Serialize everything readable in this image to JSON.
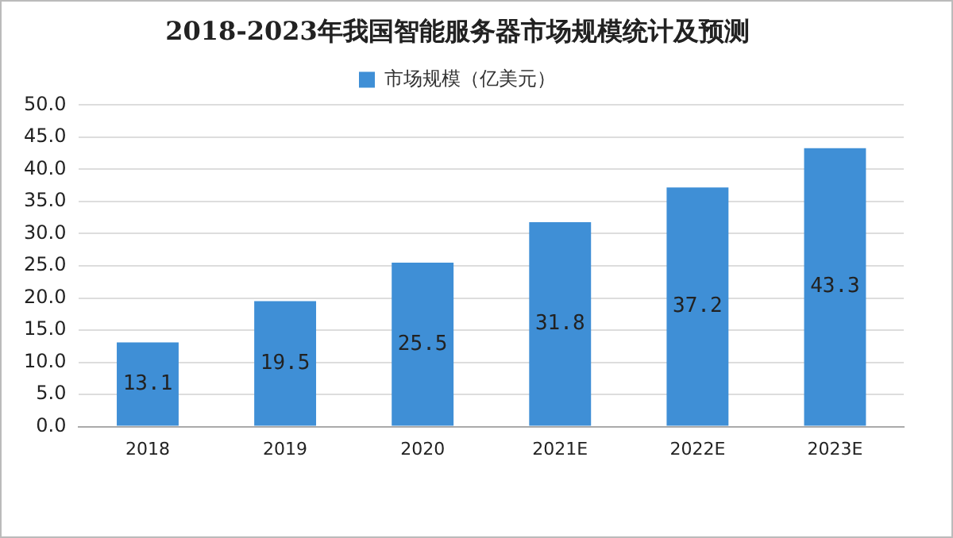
{
  "chart_data": {
    "type": "bar",
    "title": "2018-2023年我国智能服务器市场规模统计及预测",
    "categories": [
      "2018",
      "2019",
      "2020",
      "2021E",
      "2022E",
      "2023E"
    ],
    "series": [
      {
        "name": "市场规模（亿美元）",
        "color": "#3f8fd6",
        "values": [
          13.1,
          19.5,
          25.5,
          31.8,
          37.2,
          43.3
        ]
      }
    ],
    "ylim": [
      0,
      50
    ],
    "yticks": [
      {
        "value": 0,
        "label": "0.0"
      },
      {
        "value": 5,
        "label": "5.0"
      },
      {
        "value": 10,
        "label": "10.0"
      },
      {
        "value": 15,
        "label": "15.0"
      },
      {
        "value": 20,
        "label": "20.0"
      },
      {
        "value": 25,
        "label": "25.0"
      },
      {
        "value": 30,
        "label": "30.0"
      },
      {
        "value": 35,
        "label": "35.0"
      },
      {
        "value": 40,
        "label": "40.0"
      },
      {
        "value": 45,
        "label": "45.0"
      },
      {
        "value": 50,
        "label": "50.0"
      }
    ],
    "grid": "y",
    "legend": "top",
    "data_labels": true
  }
}
